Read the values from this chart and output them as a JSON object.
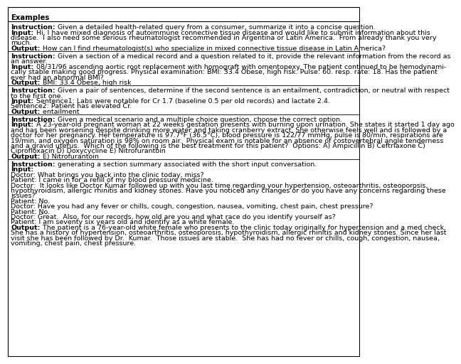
{
  "title": "Examples",
  "background_color": "#ffffff",
  "sections": [
    {
      "lines": [
        [
          {
            "text": "Instruction:",
            "bold": true
          },
          {
            "text": " Given a detailed health-related query from a consumer, summarize it into a concise question.",
            "bold": false
          }
        ],
        [
          {
            "text": "Input:",
            "bold": true
          },
          {
            "text": " Hi, I have mixed diagnosis of autoimmune connective tissue disease and would like to submit information about this",
            "bold": false
          }
        ],
        [
          {
            "text": "disease.  I also need some serious rheumatologist recommended in Argentina or Latin America.  From already thank you very",
            "bold": false
          }
        ],
        [
          {
            "text": "much.",
            "bold": false
          }
        ],
        [
          {
            "text": "Output:",
            "bold": true
          },
          {
            "text": " How can I find rheumatologist(s) who specialize in mixed connective tissue disease in Latin America?",
            "bold": false
          }
        ]
      ]
    },
    {
      "lines": [
        [
          {
            "text": "Instruction:",
            "bold": true
          },
          {
            "text": " Given a section of a medical record and a question related to it, provide the relevant information from the record as",
            "bold": false
          }
        ],
        [
          {
            "text": "an answer.",
            "bold": false
          }
        ],
        [
          {
            "text": "Input:",
            "bold": true
          },
          {
            "text": " 08/31/96 ascending aortic root replacement with homograft with omentopexy. The patient continued to be hemodynami-",
            "bold": false
          }
        ],
        [
          {
            "text": "cally stable making good progress. Physical examination: BMI: 33.4 Obese, high risk. Pulse: 60. resp. rate: 18. Has the patient",
            "bold": false
          }
        ],
        [
          {
            "text": "ever had an abnormal BMI?",
            "bold": false
          }
        ],
        [
          {
            "text": "Output:",
            "bold": true
          },
          {
            "text": " BMI: 33.4 Obese, high risk",
            "bold": false
          }
        ]
      ]
    },
    {
      "lines": [
        [
          {
            "text": "Instruction:",
            "bold": true
          },
          {
            "text": " Given a pair of sentences, determine if the second sentence is an entailment, contradiction, or neutral with respect",
            "bold": false
          }
        ],
        [
          {
            "text": "to the first one.",
            "bold": false
          }
        ],
        [
          {
            "text": "Input:",
            "bold": true
          },
          {
            "text": " Sentence1: Labs were notable for Cr 1.7 (baseline 0.5 per old records) and lactate 2.4.",
            "bold": false
          }
        ],
        [
          {
            "text": "Sentence2: Patient has elevated Cr.",
            "bold": false
          }
        ],
        [
          {
            "text": "Output:",
            "bold": true
          },
          {
            "text": " entailment",
            "bold": false
          }
        ]
      ]
    },
    {
      "lines": [
        [
          {
            "text": "Instruction:",
            "bold": true
          },
          {
            "text": " Given a medical scenario and a multiple choice question, choose the correct option.",
            "bold": false
          }
        ],
        [
          {
            "text": "Input:",
            "bold": true
          },
          {
            "text": " A 23-year-old pregnant woman at 22 weeks gestation presents with burning upon urination. She states it started 1 day ago",
            "bold": false
          }
        ],
        [
          {
            "text": "and has been worsening despite drinking more water and taking cranberry extract. She otherwise feels well and is followed by a",
            "bold": false
          }
        ],
        [
          {
            "text": "doctor for her pregnancy. Her temperature is 97.7°F (36.5°C), blood pressure is 122/77 mmHg, pulse is 80/min, respirations are",
            "bold": false
          }
        ],
        [
          {
            "text": "19/min, and oxygen saturation is 98% on room air.  Physical exam is notable for an absence of costovertebral angle tenderness",
            "bold": false
          }
        ],
        [
          {
            "text": "and a gravid uterus.  Which of the following is the best treatment for this patient?  Options: A) Ampicillin B) Ceftriaxone C)",
            "bold": false
          }
        ],
        [
          {
            "text": "Ciprofloxacin D) Doxycycline E) Nitrofurantoin",
            "bold": false
          }
        ],
        [
          {
            "text": "Output:",
            "bold": true
          },
          {
            "text": " E) Nitrofurantoin",
            "bold": false
          }
        ]
      ]
    },
    {
      "lines": [
        [
          {
            "text": "Instruction:",
            "bold": true
          },
          {
            "text": " generating a section summary associated with the short input conversation.",
            "bold": false
          }
        ],
        [
          {
            "text": "Input:",
            "bold": true
          }
        ],
        [
          {
            "text": "Doctor: What brings you back into the clinic today, miss?",
            "bold": false
          }
        ],
        [
          {
            "text": "Patient: I came in for a refill of my blood pressure medicine.",
            "bold": false
          }
        ],
        [
          {
            "text": "Doctor:  It looks like Doctor Kumar followed up with you last time regarding your hypertension, osteoarthritis, osteoporosis,",
            "bold": false
          }
        ],
        [
          {
            "text": "hypothyroidism, allergic rhinitis and kidney stones. Have you noticed any changes or do you have any concerns regarding these",
            "bold": false
          }
        ],
        [
          {
            "text": "issues?",
            "bold": false
          }
        ],
        [
          {
            "text": "Patient: No.",
            "bold": false
          }
        ],
        [
          {
            "text": "Doctor: Have you had any fever or chills, cough, congestion, nausea, vomiting, chest pain, chest pressure?",
            "bold": false
          }
        ],
        [
          {
            "text": "Patient: No.",
            "bold": false
          }
        ],
        [
          {
            "text": "Doctor: Great.  Also, for our records, how old are you and what race do you identify yourself as?",
            "bold": false
          }
        ],
        [
          {
            "text": "Patient: I am seventy six years old and identify as a white female.",
            "bold": false
          }
        ],
        [
          {
            "text": "Output:",
            "bold": true
          },
          {
            "text": " The patient is a 76-year-old white female who presents to the clinic today originally for hypertension and a med check.",
            "bold": false
          }
        ],
        [
          {
            "text": "She has a history of hypertension, osteoarthritis, osteoporosis, hypothyroidism, allergic rhinitis and kidney stones. Since her last",
            "bold": false
          }
        ],
        [
          {
            "text": "visit she has been followed by Dr.  Kumar.  Those issues are stable.  She has had no fever or chills, cough, congestion, nausea,",
            "bold": false
          }
        ],
        [
          {
            "text": "vomiting, chest pain, chest pressure.",
            "bold": false
          }
        ]
      ]
    }
  ]
}
